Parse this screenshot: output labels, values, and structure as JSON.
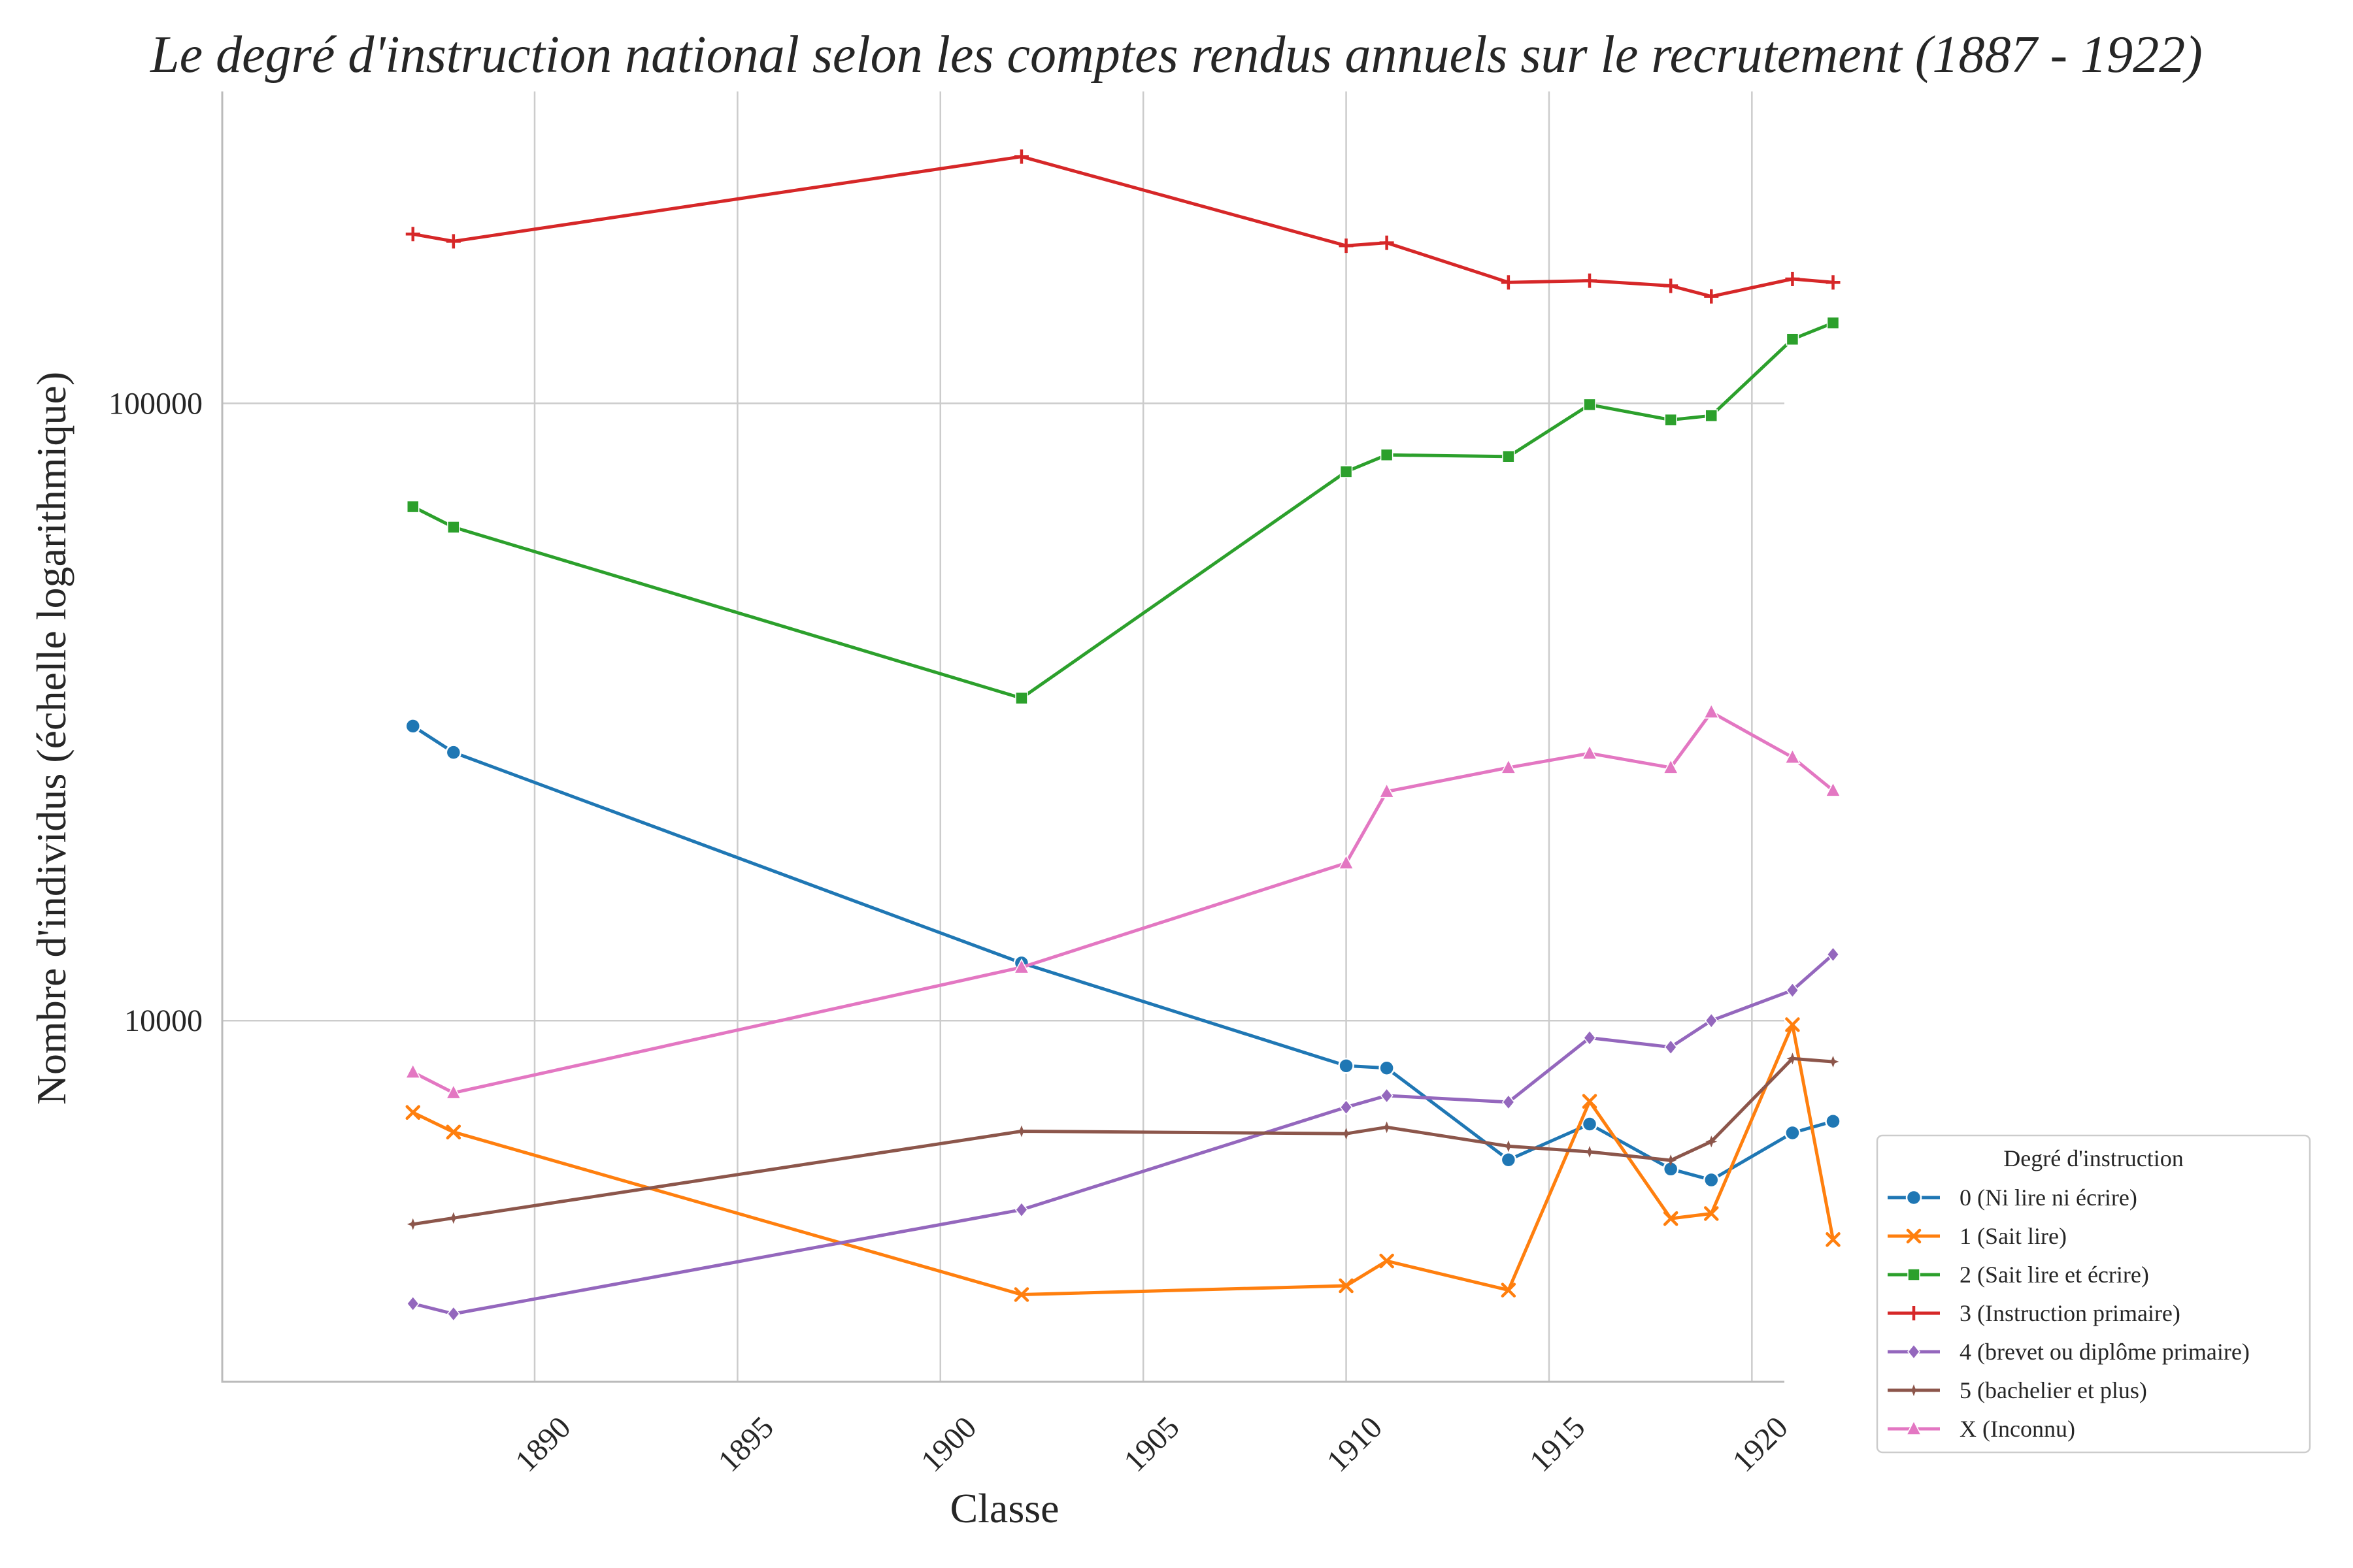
{
  "chart_data": {
    "type": "line",
    "title": "Le degré d'instruction national selon les comptes rendus annuels sur le recrutement (1887 - 1922)",
    "xlabel": "Classe",
    "ylabel": "Nombre d'individus (échelle logarithmique)",
    "yscale": "log",
    "xlim": [
      1882.3,
      1920.8
    ],
    "ylim": [
      2600,
      320000
    ],
    "x_ticks": [
      1890,
      1895,
      1900,
      1905,
      1910,
      1915,
      1920
    ],
    "x_tick_labels": [
      "1890",
      "1895",
      "1900",
      "1905",
      "1910",
      "1915",
      "1920"
    ],
    "y_ticks": [
      10000,
      100000
    ],
    "y_tick_labels": [
      "10000",
      "100000"
    ],
    "grid": true,
    "legend_title": "Degré d'instruction",
    "legend_position": "outside-bottom-right",
    "x": [
      1887,
      1888,
      1902,
      1910,
      1911,
      1914,
      1916,
      1918,
      1919,
      1921,
      1922
    ],
    "series": [
      {
        "name": "0 (Ni lire ni écrire)",
        "color": "#1f77b4",
        "marker": "circle",
        "values": [
          30000,
          27200,
          12400,
          8450,
          8380,
          5950,
          6800,
          5750,
          5520,
          6580,
          6870
        ]
      },
      {
        "name": "1 (Sait lire)",
        "color": "#ff7f0e",
        "marker": "x",
        "values": [
          7100,
          6600,
          3600,
          3720,
          4080,
          3660,
          7400,
          4780,
          4870,
          9850,
          4420
        ]
      },
      {
        "name": "2 (Sait lire et écrire)",
        "color": "#2ca02c",
        "marker": "square",
        "values": [
          68000,
          63000,
          33300,
          77500,
          82500,
          82000,
          99500,
          94000,
          95500,
          127000,
          135000
        ]
      },
      {
        "name": "3 (Instruction primaire)",
        "color": "#d62728",
        "marker": "plus",
        "values": [
          188000,
          183000,
          251000,
          180000,
          182000,
          157000,
          158000,
          155000,
          149000,
          159000,
          157000
        ]
      },
      {
        "name": "4 (brevet ou diplôme primaire)",
        "color": "#9467bd",
        "marker": "diamond",
        "values": [
          3480,
          3350,
          4940,
          7240,
          7560,
          7380,
          9380,
          9060,
          10000,
          11200,
          12800
        ]
      },
      {
        "name": "5 (bachelier et plus)",
        "color": "#8c564b",
        "marker": "star",
        "values": [
          4680,
          4790,
          6620,
          6560,
          6720,
          6260,
          6130,
          5940,
          6370,
          8680,
          8580
        ]
      },
      {
        "name": "X (Inconnu)",
        "color": "#e377c2",
        "marker": "triangle",
        "values": [
          8250,
          7640,
          12200,
          18000,
          23500,
          25700,
          27100,
          25700,
          31600,
          26700,
          23600
        ]
      }
    ]
  }
}
